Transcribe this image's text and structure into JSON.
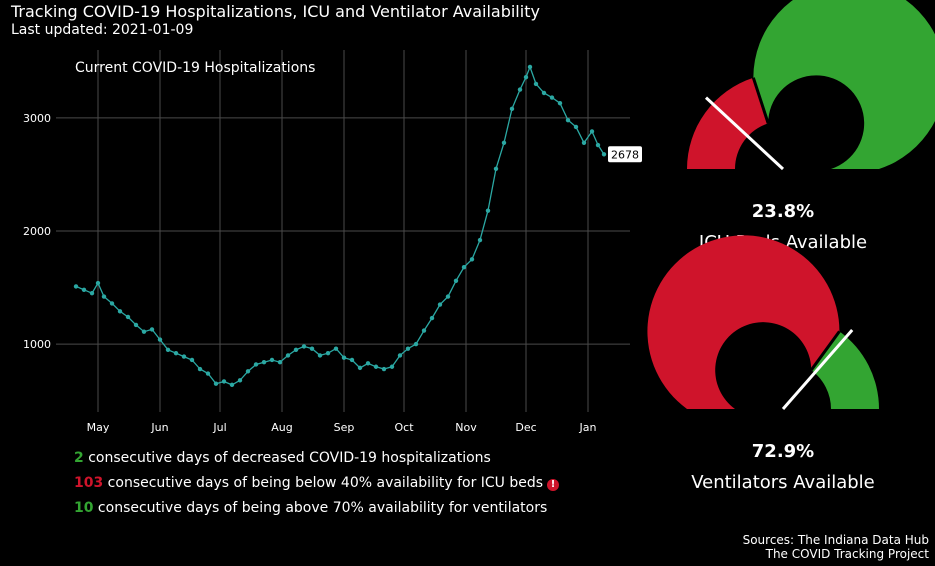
{
  "header": {
    "title": "Tracking COVID-19 Hospitalizations, ICU and Ventilator Availability",
    "subtitle": "Last updated: 2021-01-09"
  },
  "chart_data": [
    {
      "type": "line",
      "title": "Current COVID-19 Hospitalizations",
      "xlabel": "",
      "ylabel": "",
      "x_ticks": [
        "May",
        "Jun",
        "Jul",
        "Aug",
        "Sep",
        "Oct",
        "Nov",
        "Dec",
        "Jan"
      ],
      "y_ticks": [
        1000,
        2000,
        3000
      ],
      "ylim": [
        400,
        3600
      ],
      "grid": true,
      "latest_label": "2678",
      "series": [
        {
          "color": "#2ba8a3",
          "points": [
            [
              "2020-04-20",
              1510
            ],
            [
              "2020-04-24",
              1480
            ],
            [
              "2020-04-28",
              1450
            ],
            [
              "2020-05-01",
              1540
            ],
            [
              "2020-05-04",
              1420
            ],
            [
              "2020-05-08",
              1360
            ],
            [
              "2020-05-12",
              1290
            ],
            [
              "2020-05-16",
              1240
            ],
            [
              "2020-05-20",
              1170
            ],
            [
              "2020-05-24",
              1110
            ],
            [
              "2020-05-28",
              1130
            ],
            [
              "2020-06-01",
              1040
            ],
            [
              "2020-06-05",
              950
            ],
            [
              "2020-06-09",
              920
            ],
            [
              "2020-06-13",
              890
            ],
            [
              "2020-06-17",
              860
            ],
            [
              "2020-06-21",
              780
            ],
            [
              "2020-06-25",
              740
            ],
            [
              "2020-06-29",
              650
            ],
            [
              "2020-07-03",
              670
            ],
            [
              "2020-07-07",
              640
            ],
            [
              "2020-07-11",
              680
            ],
            [
              "2020-07-15",
              760
            ],
            [
              "2020-07-19",
              820
            ],
            [
              "2020-07-23",
              840
            ],
            [
              "2020-07-27",
              860
            ],
            [
              "2020-07-31",
              840
            ],
            [
              "2020-08-04",
              900
            ],
            [
              "2020-08-08",
              950
            ],
            [
              "2020-08-12",
              980
            ],
            [
              "2020-08-16",
              960
            ],
            [
              "2020-08-20",
              900
            ],
            [
              "2020-08-24",
              920
            ],
            [
              "2020-08-28",
              960
            ],
            [
              "2020-09-01",
              880
            ],
            [
              "2020-09-05",
              860
            ],
            [
              "2020-09-09",
              790
            ],
            [
              "2020-09-13",
              830
            ],
            [
              "2020-09-17",
              800
            ],
            [
              "2020-09-21",
              780
            ],
            [
              "2020-09-25",
              800
            ],
            [
              "2020-09-29",
              900
            ],
            [
              "2020-10-03",
              960
            ],
            [
              "2020-10-07",
              1000
            ],
            [
              "2020-10-11",
              1120
            ],
            [
              "2020-10-15",
              1230
            ],
            [
              "2020-10-19",
              1350
            ],
            [
              "2020-10-23",
              1420
            ],
            [
              "2020-10-27",
              1560
            ],
            [
              "2020-10-31",
              1680
            ],
            [
              "2020-11-04",
              1750
            ],
            [
              "2020-11-08",
              1920
            ],
            [
              "2020-11-12",
              2180
            ],
            [
              "2020-11-16",
              2550
            ],
            [
              "2020-11-20",
              2780
            ],
            [
              "2020-11-24",
              3080
            ],
            [
              "2020-11-28",
              3250
            ],
            [
              "2020-12-01",
              3360
            ],
            [
              "2020-12-03",
              3450
            ],
            [
              "2020-12-06",
              3300
            ],
            [
              "2020-12-10",
              3220
            ],
            [
              "2020-12-14",
              3180
            ],
            [
              "2020-12-18",
              3130
            ],
            [
              "2020-12-22",
              2980
            ],
            [
              "2020-12-26",
              2920
            ],
            [
              "2020-12-30",
              2780
            ],
            [
              "2021-01-03",
              2880
            ],
            [
              "2021-01-06",
              2760
            ],
            [
              "2021-01-09",
              2678
            ]
          ]
        }
      ]
    },
    {
      "type": "gauge",
      "value_label": "23.8%",
      "label": "ICU Beds Available",
      "value": 23.8,
      "threshold": 40,
      "colors": {
        "below": "#cf142b",
        "above": "#33a532",
        "needle": "#ffffff"
      }
    },
    {
      "type": "gauge",
      "value_label": "72.9%",
      "label": "Ventilators Available",
      "value": 72.9,
      "threshold": 70,
      "colors": {
        "below": "#cf142b",
        "above": "#33a532",
        "needle": "#ffffff"
      }
    }
  ],
  "stats": [
    {
      "number": "2",
      "color": "green",
      "text": " consecutive days of decreased COVID-19 hospitalizations"
    },
    {
      "number": "103",
      "color": "red",
      "text": " consecutive days of being below 40% availability for ICU beds",
      "alert": "!"
    },
    {
      "number": "10",
      "color": "green",
      "text": " consecutive days of being above 70% availability for ventilators"
    }
  ],
  "sources": {
    "line1": "Sources: The Indiana Data Hub",
    "line2": "The COVID Tracking Project"
  }
}
